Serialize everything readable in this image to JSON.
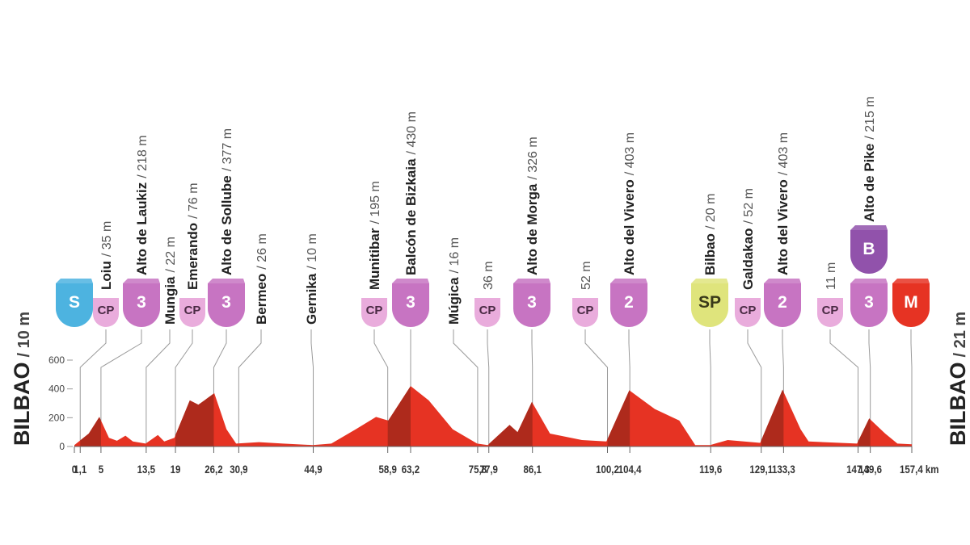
{
  "chart_data": {
    "type": "area",
    "color": "#e63323",
    "shade_color": "#a3291b",
    "leader_color": "#9a9a9a",
    "x": [
      0,
      2.7,
      4.7,
      6.5,
      8,
      9.6,
      11,
      13.4,
      15.7,
      16.9,
      18.8,
      21.7,
      23.3,
      26.3,
      28.6,
      30.4,
      34.7,
      39.2,
      44.8,
      48.3,
      52.9,
      56.7,
      59,
      63.2,
      66.6,
      71.1,
      75.7,
      77.7,
      81.8,
      83.3,
      86,
      89.4,
      95.4,
      100,
      104.3,
      109.1,
      113.7,
      116.7,
      119.5,
      122.8,
      128.9,
      133.1,
      136.5,
      138,
      147.1,
      149.4,
      152.4,
      154.7,
      157.4
    ],
    "values": [
      10,
      90,
      205,
      60,
      40,
      75,
      35,
      20,
      80,
      35,
      60,
      320,
      290,
      370,
      120,
      20,
      30,
      20,
      10,
      20,
      120,
      205,
      180,
      420,
      320,
      120,
      20,
      10,
      150,
      100,
      310,
      90,
      45,
      35,
      390,
      260,
      180,
      10,
      10,
      45,
      25,
      395,
      120,
      35,
      20,
      195,
      90,
      20,
      15
    ],
    "xlim": [
      0,
      157.4
    ],
    "ylim": [
      0,
      600
    ],
    "yticks": [
      0,
      200,
      400,
      600
    ],
    "xticks": [
      0,
      {
        "value": 1.1,
        "label": "1,1"
      },
      5,
      {
        "value": 13.5,
        "label": "13,5"
      },
      19,
      {
        "value": 26.2,
        "label": "26,2"
      },
      {
        "value": 30.9,
        "label": "30,9"
      },
      {
        "value": 44.9,
        "label": "44,9"
      },
      {
        "value": 58.9,
        "label": "58,9"
      },
      {
        "value": 63.2,
        "label": "63,2"
      },
      {
        "value": 75.8,
        "label": "75,8"
      },
      {
        "value": 77.9,
        "label": "77,9"
      },
      {
        "value": 86.1,
        "label": "86,1"
      },
      {
        "value": 100.2,
        "label": "100,2"
      },
      {
        "value": 104.4,
        "label": "104,4"
      },
      {
        "value": 119.6,
        "label": "119,6"
      },
      {
        "value": 129.1,
        "label": "129,1"
      },
      {
        "value": 133.3,
        "label": "133,3"
      },
      {
        "value": 147.3,
        "label": "147,3"
      },
      {
        "value": 149.6,
        "label": "149,6"
      },
      {
        "value": 157.4,
        "label": "157,4 km"
      }
    ],
    "start_label": {
      "name": "BILBAO",
      "elevation": "/ 10 m"
    },
    "finish_label": {
      "name": "BILBAO",
      "elevation": "/ 21 m"
    },
    "waypoints": [
      {
        "badges": [
          {
            "text": "S",
            "color": "#4db3e0",
            "text_color": "#ffffff"
          }
        ]
      },
      {
        "name": "Loiu",
        "elevation": "/ 35 m",
        "badges": [
          {
            "text": "CP",
            "color": "#e9acdc",
            "text_color": "#4a2a44"
          }
        ]
      },
      {
        "name": "Alto de Laukiz",
        "elevation": "/ 218 m",
        "badges": [
          {
            "text": "3",
            "color": "#c774c2",
            "text_color": "#ffffff"
          }
        ]
      },
      {
        "name": "Mungia",
        "elevation": "/ 22 m",
        "badges": []
      },
      {
        "name": "Emerando",
        "elevation": "/ 76 m",
        "badges": [
          {
            "text": "CP",
            "color": "#e9acdc",
            "text_color": "#4a2a44"
          }
        ]
      },
      {
        "name": "Alto de Sollube",
        "elevation": "/ 377 m",
        "badges": [
          {
            "text": "3",
            "color": "#c774c2",
            "text_color": "#ffffff"
          }
        ]
      },
      {
        "name": "Bermeo",
        "elevation": "/ 26 m",
        "badges": []
      },
      {
        "name": "Gernika",
        "elevation": "/ 10 m",
        "badges": []
      },
      {
        "name": "Munitibar",
        "elevation": "/ 195 m",
        "badges": [
          {
            "text": "CP",
            "color": "#e9acdc",
            "text_color": "#4a2a44"
          }
        ]
      },
      {
        "name": "Balcón de Bizkaia",
        "elevation": "/ 430 m",
        "badges": [
          {
            "text": "3",
            "color": "#c774c2",
            "text_color": "#ffffff"
          }
        ]
      },
      {
        "name": "Múgica",
        "elevation": "/ 16 m",
        "badges": []
      },
      {
        "elevation": "36 m",
        "badges": [
          {
            "text": "CP",
            "color": "#e9acdc",
            "text_color": "#4a2a44"
          }
        ]
      },
      {
        "name": "Alto de Morga",
        "elevation": "/ 326 m",
        "badges": [
          {
            "text": "3",
            "color": "#c774c2",
            "text_color": "#ffffff"
          }
        ]
      },
      {
        "elevation": "52 m",
        "badges": [
          {
            "text": "CP",
            "color": "#e9acdc",
            "text_color": "#4a2a44"
          }
        ]
      },
      {
        "name": "Alto del Vivero",
        "elevation": "/ 403 m",
        "badges": [
          {
            "text": "2",
            "color": "#c774c2",
            "text_color": "#ffffff"
          }
        ]
      },
      {
        "name": "Bilbao",
        "elevation": "/ 20 m",
        "badges": [
          {
            "text": "SP",
            "color": "#dfe47c",
            "text_color": "#3a3a1a"
          }
        ]
      },
      {
        "name": "Galdakao",
        "elevation": "/ 52 m",
        "badges": [
          {
            "text": "CP",
            "color": "#e9acdc",
            "text_color": "#4a2a44"
          }
        ]
      },
      {
        "name": "Alto del Vivero",
        "elevation": "/ 403 m",
        "badges": [
          {
            "text": "2",
            "color": "#c774c2",
            "text_color": "#ffffff"
          }
        ]
      },
      {
        "elevation": "11 m",
        "badges": [
          {
            "text": "CP",
            "color": "#e9acdc",
            "text_color": "#4a2a44"
          }
        ]
      },
      {
        "name": "Alto de Pike",
        "elevation": "/ 215 m",
        "badges": [
          {
            "text": "3",
            "color": "#c774c2",
            "text_color": "#ffffff"
          },
          {
            "text": "B",
            "color": "#9152ab",
            "text_color": "#ffffff"
          }
        ]
      },
      {
        "badges": [
          {
            "text": "M",
            "color": "#e63323",
            "text_color": "#ffffff"
          }
        ]
      }
    ]
  }
}
